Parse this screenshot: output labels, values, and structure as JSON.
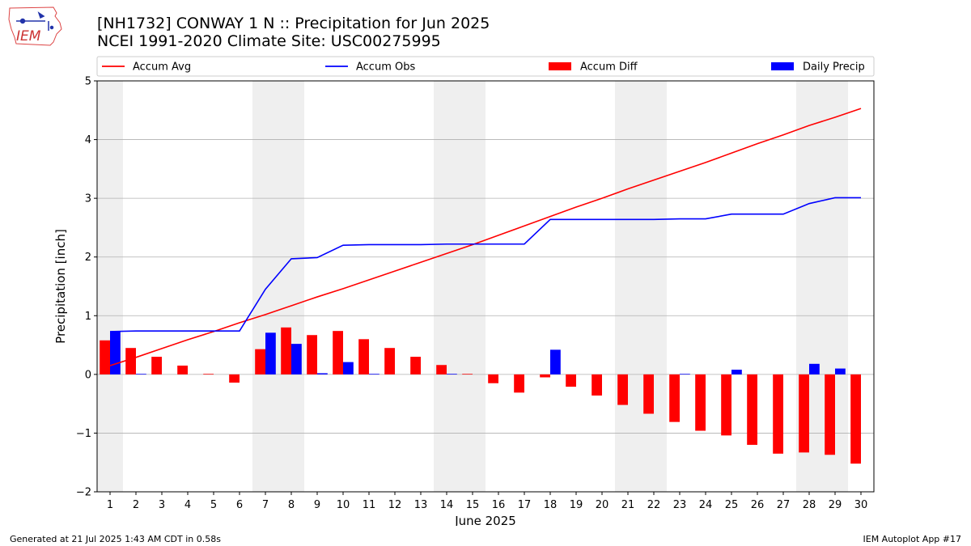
{
  "logo_text": "IEM",
  "header": {
    "title": "[NH1732] CONWAY 1 N :: Precipitation for Jun 2025",
    "subtitle": "NCEI 1991-2020 Climate Site: USC00275995"
  },
  "footer": {
    "left": "Generated at 21 Jul 2025 1:43 AM CDT in 0.58s",
    "right": "IEM Autoplot App #17"
  },
  "chart_data": {
    "type": "bar",
    "xlabel": "June 2025",
    "ylabel": "Precipitation [inch]",
    "ylim": [
      -2,
      5
    ],
    "yticks": [
      -2,
      -1,
      0,
      1,
      2,
      3,
      4,
      5
    ],
    "ytick_labels": [
      "−2",
      "−1",
      "0",
      "1",
      "2",
      "3",
      "4",
      "5"
    ],
    "grid": true,
    "legend_placement": "top",
    "x": [
      1,
      2,
      3,
      4,
      5,
      6,
      7,
      8,
      9,
      10,
      11,
      12,
      13,
      14,
      15,
      16,
      17,
      18,
      19,
      20,
      21,
      22,
      23,
      24,
      25,
      26,
      27,
      28,
      29,
      30
    ],
    "weekend_days": [
      1,
      7,
      8,
      14,
      15,
      21,
      22,
      28,
      29
    ],
    "series": [
      {
        "name": "Accum Avg",
        "kind": "line",
        "color": "#ff0000",
        "values": [
          0.15,
          0.29,
          0.44,
          0.59,
          0.73,
          0.88,
          1.02,
          1.17,
          1.32,
          1.46,
          1.61,
          1.76,
          1.91,
          2.06,
          2.21,
          2.37,
          2.53,
          2.69,
          2.85,
          3.0,
          3.16,
          3.31,
          3.46,
          3.61,
          3.77,
          3.93,
          4.08,
          4.24,
          4.38,
          4.53
        ]
      },
      {
        "name": "Accum Obs",
        "kind": "line",
        "color": "#0000ff",
        "values": [
          0.73,
          0.74,
          0.74,
          0.74,
          0.74,
          0.74,
          1.45,
          1.97,
          1.99,
          2.2,
          2.21,
          2.21,
          2.21,
          2.22,
          2.22,
          2.22,
          2.22,
          2.64,
          2.64,
          2.64,
          2.64,
          2.64,
          2.65,
          2.65,
          2.73,
          2.73,
          2.73,
          2.91,
          3.01,
          3.01
        ]
      },
      {
        "name": "Accum Diff",
        "kind": "bar",
        "color": "#ff0000",
        "values": [
          0.58,
          0.45,
          0.3,
          0.15,
          0.01,
          -0.14,
          0.43,
          0.8,
          0.67,
          0.74,
          0.6,
          0.45,
          0.3,
          0.16,
          0.01,
          -0.15,
          -0.31,
          -0.05,
          -0.21,
          -0.36,
          -0.52,
          -0.67,
          -0.81,
          -0.96,
          -1.04,
          -1.2,
          -1.35,
          -1.33,
          -1.37,
          -1.52
        ]
      },
      {
        "name": "Daily Precip",
        "kind": "bar",
        "color": "#0000ff",
        "values": [
          0.73,
          0.01,
          0,
          0,
          0,
          0,
          0.71,
          0.52,
          0.02,
          0.21,
          0.01,
          0,
          0,
          0.01,
          0,
          0,
          0,
          0.42,
          0,
          0,
          0,
          0,
          0.01,
          0,
          0.08,
          0,
          0,
          0.18,
          0.1,
          0
        ]
      }
    ]
  }
}
